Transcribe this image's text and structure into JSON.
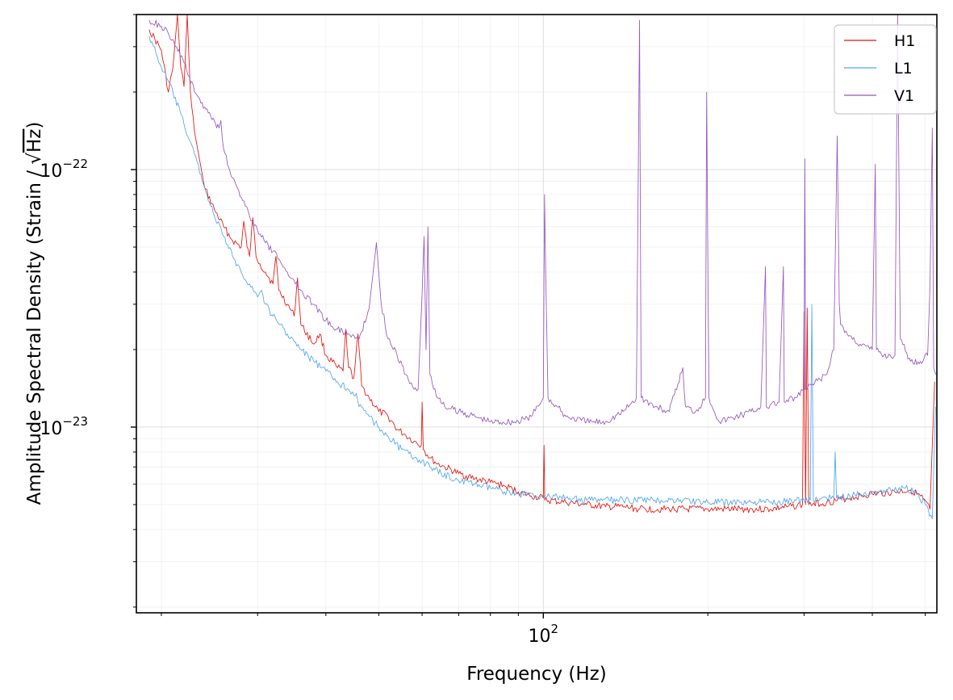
{
  "chart_data": {
    "type": "line",
    "title": "",
    "xlabel": "Frequency (Hz)",
    "ylabel_main": "Amplitude Spectral Density (Strain / ",
    "ylabel_sqrt": "√",
    "ylabel_unit": "Hz",
    "ylabel_close": ")",
    "xscale": "log",
    "yscale": "log",
    "xlim": [
      18,
      525
    ],
    "ylim": [
      1.9e-24,
      4e-22
    ],
    "grid": true,
    "legend_position": "top-right",
    "x_major_ticks": [
      {
        "value": 100,
        "base": "10",
        "exp": "2"
      }
    ],
    "y_major_ticks": [
      {
        "value": 1e-22,
        "base": "10",
        "exp": "−22"
      },
      {
        "value": 1e-23,
        "base": "10",
        "exp": "−23"
      }
    ],
    "series": [
      {
        "name": "H1",
        "color": "#e8120c",
        "points": [
          [
            19,
            3.5e-22
          ],
          [
            20,
            2.9e-22
          ],
          [
            20.6,
            2e-22
          ],
          [
            21,
            2.5e-22
          ],
          [
            21.4,
            4e-22
          ],
          [
            21.7,
            2.5e-22
          ],
          [
            22,
            2.1e-22
          ],
          [
            22.3,
            4e-22
          ],
          [
            22.6,
            2e-22
          ],
          [
            23,
            1.4e-22
          ],
          [
            24,
            8.5e-23
          ],
          [
            25,
            7e-23
          ],
          [
            26,
            6e-23
          ],
          [
            27,
            5.3e-23
          ],
          [
            28,
            5e-23
          ],
          [
            28.3,
            6.3e-23
          ],
          [
            28.7,
            5e-23
          ],
          [
            29,
            4.6e-23
          ],
          [
            29.4,
            6.5e-23
          ],
          [
            29.8,
            4.6e-23
          ],
          [
            30.3,
            4.3e-23
          ],
          [
            31,
            4e-23
          ],
          [
            32,
            3.6e-23
          ],
          [
            32.4,
            4.6e-23
          ],
          [
            32.8,
            3.4e-23
          ],
          [
            34,
            3e-23
          ],
          [
            35,
            2.7e-23
          ],
          [
            35.5,
            3.8e-23
          ],
          [
            36,
            2.5e-23
          ],
          [
            38,
            2.1e-23
          ],
          [
            39,
            2.3e-23
          ],
          [
            40,
            1.9e-23
          ],
          [
            42,
            1.7e-23
          ],
          [
            43,
            1.65e-23
          ],
          [
            43.5,
            2.4e-23
          ],
          [
            44,
            1.7e-23
          ],
          [
            45,
            1.55e-23
          ],
          [
            45.8,
            2.3e-23
          ],
          [
            46.5,
            1.45e-23
          ],
          [
            48,
            1.3e-23
          ],
          [
            50,
            1.15e-23
          ],
          [
            52,
            1.1e-23
          ],
          [
            54,
            9.8e-24
          ],
          [
            56,
            9.3e-24
          ],
          [
            58,
            8.8e-24
          ],
          [
            59.8,
            8.5e-24
          ],
          [
            60,
            1.25e-23
          ],
          [
            60.3,
            8.2e-24
          ],
          [
            62,
            7.6e-24
          ],
          [
            64,
            7.2e-24
          ],
          [
            66,
            7e-24
          ],
          [
            70,
            6.6e-24
          ],
          [
            75,
            6.3e-24
          ],
          [
            80,
            6.1e-24
          ],
          [
            85,
            5.9e-24
          ],
          [
            90,
            5.6e-24
          ],
          [
            95,
            5.4e-24
          ],
          [
            100,
            5.3e-24
          ],
          [
            100.3,
            8.5e-24
          ],
          [
            100.6,
            5.2e-24
          ],
          [
            110,
            5.1e-24
          ],
          [
            120,
            5e-24
          ],
          [
            130,
            4.9e-24
          ],
          [
            140,
            4.9e-24
          ],
          [
            150,
            4.8e-24
          ],
          [
            170,
            4.8e-24
          ],
          [
            200,
            4.8e-24
          ],
          [
            230,
            4.8e-24
          ],
          [
            260,
            4.8e-24
          ],
          [
            280,
            4.9e-24
          ],
          [
            298,
            5e-24
          ],
          [
            300,
            2.8e-23
          ],
          [
            302,
            5e-24
          ],
          [
            304,
            2.9e-23
          ],
          [
            306,
            5e-24
          ],
          [
            330,
            5.1e-24
          ],
          [
            360,
            5.3e-24
          ],
          [
            400,
            5.5e-24
          ],
          [
            440,
            5.6e-24
          ],
          [
            470,
            5.7e-24
          ],
          [
            490,
            5.4e-24
          ],
          [
            510,
            4.8e-24
          ],
          [
            520,
            1.5e-23
          ]
        ]
      },
      {
        "name": "L1",
        "color": "#4da6f2",
        "points": [
          [
            19,
            3.3e-22
          ],
          [
            20,
            2.5e-22
          ],
          [
            21,
            2e-22
          ],
          [
            22,
            1.5e-22
          ],
          [
            23,
            1.15e-22
          ],
          [
            24,
            8.5e-23
          ],
          [
            25,
            6.6e-23
          ],
          [
            26,
            5.5e-23
          ],
          [
            27,
            4.6e-23
          ],
          [
            28,
            4e-23
          ],
          [
            29,
            3.6e-23
          ],
          [
            30,
            3.2e-23
          ],
          [
            30.5,
            3.4e-23
          ],
          [
            31,
            3e-23
          ],
          [
            32,
            2.7e-23
          ],
          [
            33,
            2.5e-23
          ],
          [
            34,
            2.3e-23
          ],
          [
            35,
            2.15e-23
          ],
          [
            36,
            2e-23
          ],
          [
            38,
            1.8e-23
          ],
          [
            40,
            1.65e-23
          ],
          [
            42,
            1.5e-23
          ],
          [
            44,
            1.4e-23
          ],
          [
            45.5,
            1.35e-23
          ],
          [
            46,
            1.2e-23
          ],
          [
            48,
            1.1e-23
          ],
          [
            50,
            1e-23
          ],
          [
            52,
            9.2e-24
          ],
          [
            55,
            8.2e-24
          ],
          [
            58,
            7.6e-24
          ],
          [
            60,
            7.4e-24
          ],
          [
            62,
            7e-24
          ],
          [
            65,
            6.6e-24
          ],
          [
            70,
            6.2e-24
          ],
          [
            75,
            6e-24
          ],
          [
            80,
            5.8e-24
          ],
          [
            90,
            5.5e-24
          ],
          [
            100,
            5.4e-24
          ],
          [
            110,
            5.3e-24
          ],
          [
            120,
            5.2e-24
          ],
          [
            140,
            5.2e-24
          ],
          [
            160,
            5.2e-24
          ],
          [
            180,
            5.2e-24
          ],
          [
            200,
            5.1e-24
          ],
          [
            230,
            5.1e-24
          ],
          [
            260,
            5.1e-24
          ],
          [
            290,
            5.2e-24
          ],
          [
            308,
            5.2e-24
          ],
          [
            310,
            3e-23
          ],
          [
            312,
            5.2e-24
          ],
          [
            330,
            5.3e-24
          ],
          [
            340,
            5.3e-24
          ],
          [
            342,
            8e-24
          ],
          [
            344,
            5.3e-24
          ],
          [
            380,
            5.5e-24
          ],
          [
            420,
            5.7e-24
          ],
          [
            460,
            5.8e-24
          ],
          [
            480,
            5.6e-24
          ],
          [
            500,
            5e-24
          ],
          [
            515,
            4.4e-24
          ],
          [
            522,
            1.2e-23
          ]
        ]
      },
      {
        "name": "V1",
        "color": "#9656be",
        "points": [
          [
            19,
            3.8e-22
          ],
          [
            20,
            3.6e-22
          ],
          [
            21,
            3.2e-22
          ],
          [
            22,
            2.6e-22
          ],
          [
            22.5,
            2.3e-22
          ],
          [
            23,
            2e-22
          ],
          [
            24,
            1.75e-22
          ],
          [
            25,
            1.55e-22
          ],
          [
            25.5,
            1.45e-22
          ],
          [
            25.7,
            1.55e-22
          ],
          [
            26,
            1.2e-22
          ],
          [
            27,
            9.3e-23
          ],
          [
            28,
            7.8e-23
          ],
          [
            29,
            6.6e-23
          ],
          [
            30,
            5.8e-23
          ],
          [
            31,
            5.2e-23
          ],
          [
            32,
            4.8e-23
          ],
          [
            33,
            4.4e-23
          ],
          [
            34,
            4e-23
          ],
          [
            35,
            3.7e-23
          ],
          [
            36,
            3.4e-23
          ],
          [
            38,
            3e-23
          ],
          [
            40,
            2.6e-23
          ],
          [
            42,
            2.4e-23
          ],
          [
            44,
            2.3e-23
          ],
          [
            46,
            2.2e-23
          ],
          [
            48,
            2.9e-23
          ],
          [
            49.5,
            5.2e-23
          ],
          [
            50.5,
            3e-23
          ],
          [
            52,
            2.2e-23
          ],
          [
            54,
            1.9e-23
          ],
          [
            56,
            1.6e-23
          ],
          [
            58,
            1.4e-23
          ],
          [
            59,
            1.4e-23
          ],
          [
            60,
            3.3e-23
          ],
          [
            60.5,
            5.5e-23
          ],
          [
            61,
            2e-23
          ],
          [
            61.5,
            6e-23
          ],
          [
            62,
            1.6e-23
          ],
          [
            64,
            1.3e-23
          ],
          [
            66,
            1.2e-23
          ],
          [
            70,
            1.15e-23
          ],
          [
            75,
            1.1e-23
          ],
          [
            80,
            1.05e-23
          ],
          [
            90,
            1.05e-23
          ],
          [
            95,
            1.1e-23
          ],
          [
            100,
            1.3e-23
          ],
          [
            100.5,
            8e-23
          ],
          [
            101,
            4e-23
          ],
          [
            102,
            1.3e-23
          ],
          [
            110,
            1.1e-23
          ],
          [
            120,
            1.05e-23
          ],
          [
            130,
            1.05e-23
          ],
          [
            140,
            1.15e-23
          ],
          [
            148,
            1.3e-23
          ],
          [
            150,
            3.8e-22
          ],
          [
            151,
            1.3e-23
          ],
          [
            160,
            1.2e-23
          ],
          [
            170,
            1.15e-23
          ],
          [
            180,
            1.7e-23
          ],
          [
            182,
            1.2e-23
          ],
          [
            190,
            1.15e-23
          ],
          [
            198,
            1.3e-23
          ],
          [
            199,
            2e-22
          ],
          [
            200,
            4.5e-23
          ],
          [
            201,
            1.3e-23
          ],
          [
            210,
            1.05e-23
          ],
          [
            225,
            1.1e-23
          ],
          [
            240,
            1.15e-23
          ],
          [
            250,
            1.2e-23
          ],
          [
            255,
            4.2e-23
          ],
          [
            256,
            1.2e-23
          ],
          [
            270,
            1.25e-23
          ],
          [
            275,
            4.2e-23
          ],
          [
            276,
            1.25e-23
          ],
          [
            290,
            1.3e-23
          ],
          [
            300,
            1.4e-23
          ],
          [
            301,
            1.1e-22
          ],
          [
            302,
            1.4e-23
          ],
          [
            330,
            1.6e-23
          ],
          [
            340,
            2e-23
          ],
          [
            345,
            1.35e-22
          ],
          [
            348,
            3e-23
          ],
          [
            350,
            2.5e-23
          ],
          [
            360,
            2.3e-23
          ],
          [
            380,
            2.1e-23
          ],
          [
            400,
            2e-23
          ],
          [
            405,
            1.05e-22
          ],
          [
            407,
            2e-23
          ],
          [
            420,
            1.9e-23
          ],
          [
            440,
            1.9e-23
          ],
          [
            445,
            4e-22
          ],
          [
            450,
            2.2e-23
          ],
          [
            470,
            1.8e-23
          ],
          [
            490,
            1.8e-23
          ],
          [
            505,
            1.9e-23
          ],
          [
            510,
            3.5e-23
          ],
          [
            515,
            1.45e-22
          ],
          [
            518,
            1.7e-23
          ],
          [
            523,
            1.6e-23
          ]
        ]
      }
    ]
  }
}
